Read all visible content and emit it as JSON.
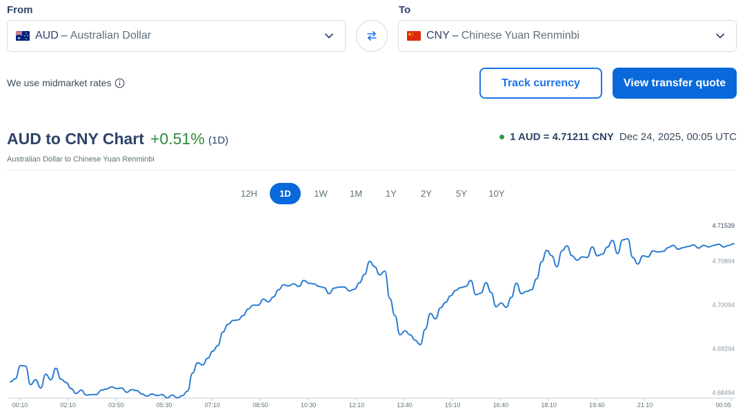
{
  "from": {
    "label": "From",
    "code": "AUD",
    "separator": "–",
    "name": "Australian Dollar",
    "flag": "australia-flag-icon"
  },
  "to": {
    "label": "To",
    "code": "CNY",
    "separator": "–",
    "name": "Chinese Yuan Renminbi",
    "flag": "china-flag-icon"
  },
  "midmarket_text": "We use midmarket rates",
  "buttons": {
    "track": "Track currency",
    "quote": "View transfer quote"
  },
  "header": {
    "title": "AUD to CNY Chart",
    "change": "+0.51%",
    "period": "(1D)",
    "subtitle": "Australian Dollar to Chinese Yuan Renminbi",
    "rate": "1 AUD = 4.71211 CNY",
    "timestamp": "Dec 24, 2025, 00:05 UTC"
  },
  "tabs": [
    "12H",
    "1D",
    "1W",
    "1M",
    "1Y",
    "2Y",
    "5Y",
    "10Y"
  ],
  "active_tab": "1D",
  "colors": {
    "accent": "#0969da",
    "line": "#2a7bd1",
    "positive": "#2f8a35"
  },
  "chart_data": {
    "type": "line",
    "x_ticks": [
      "00:10",
      "02:10",
      "03:50",
      "05:30",
      "07:10",
      "08:50",
      "10:30",
      "12:10",
      "13:40",
      "15:10",
      "16:40",
      "18:10",
      "19:40",
      "21:10",
      "00:05"
    ],
    "y_ticks": [
      4.68494,
      4.69294,
      4.70094,
      4.70894,
      4.71539
    ],
    "ylim": [
      4.68494,
      4.71539
    ],
    "series": [
      {
        "values": [
          4.6869,
          4.6875,
          4.6899,
          4.6898,
          4.6864,
          4.6873,
          4.6858,
          4.6883,
          4.6873,
          4.6894,
          4.6874,
          4.6868,
          4.6857,
          4.6848,
          4.6854,
          4.6845,
          4.6846,
          4.6846,
          4.6854,
          4.6856,
          4.686,
          4.6857,
          4.6858,
          4.685,
          4.6855,
          4.6853,
          4.6847,
          4.6843,
          4.6847,
          4.6844,
          4.6846,
          4.684,
          4.6845,
          4.684,
          4.6844,
          4.6852,
          4.6885,
          4.6904,
          4.69,
          4.6912,
          4.6925,
          4.6935,
          4.696,
          4.6974,
          4.6981,
          4.6982,
          4.699,
          4.7002,
          4.7009,
          4.7009,
          4.702,
          4.7015,
          4.7024,
          4.7037,
          4.7046,
          4.7044,
          4.7048,
          4.7043,
          4.7054,
          4.7049,
          4.7048,
          4.7043,
          4.7041,
          4.703,
          4.704,
          4.7042,
          4.7042,
          4.7035,
          4.7038,
          4.705,
          4.7065,
          4.7089,
          4.7079,
          4.7064,
          4.7071,
          4.7021,
          4.699,
          4.6955,
          4.6962,
          4.6955,
          4.6945,
          4.6937,
          4.6965,
          4.6994,
          4.6984,
          4.7004,
          4.7014,
          4.7026,
          4.7036,
          4.7041,
          4.7043,
          4.7054,
          4.7028,
          4.7031,
          4.705,
          4.7032,
          4.7006,
          4.7013,
          4.7005,
          4.7023,
          4.7049,
          4.703,
          4.7034,
          4.7037,
          4.7057,
          4.7088,
          4.7109,
          4.7099,
          4.7079,
          4.7108,
          4.7117,
          4.7099,
          4.7091,
          4.7097,
          4.7096,
          4.7115,
          4.7099,
          4.7102,
          4.7115,
          4.7127,
          4.7103,
          4.7128,
          4.713,
          4.7096,
          4.7084,
          4.7099,
          4.7097,
          4.7108,
          4.7106,
          4.7107,
          4.7114,
          4.7118,
          4.7111,
          4.7114,
          4.7116,
          4.7119,
          4.7113,
          4.7118,
          4.7115,
          4.7118,
          4.712,
          4.7115,
          4.7118,
          4.7121
        ]
      }
    ]
  }
}
